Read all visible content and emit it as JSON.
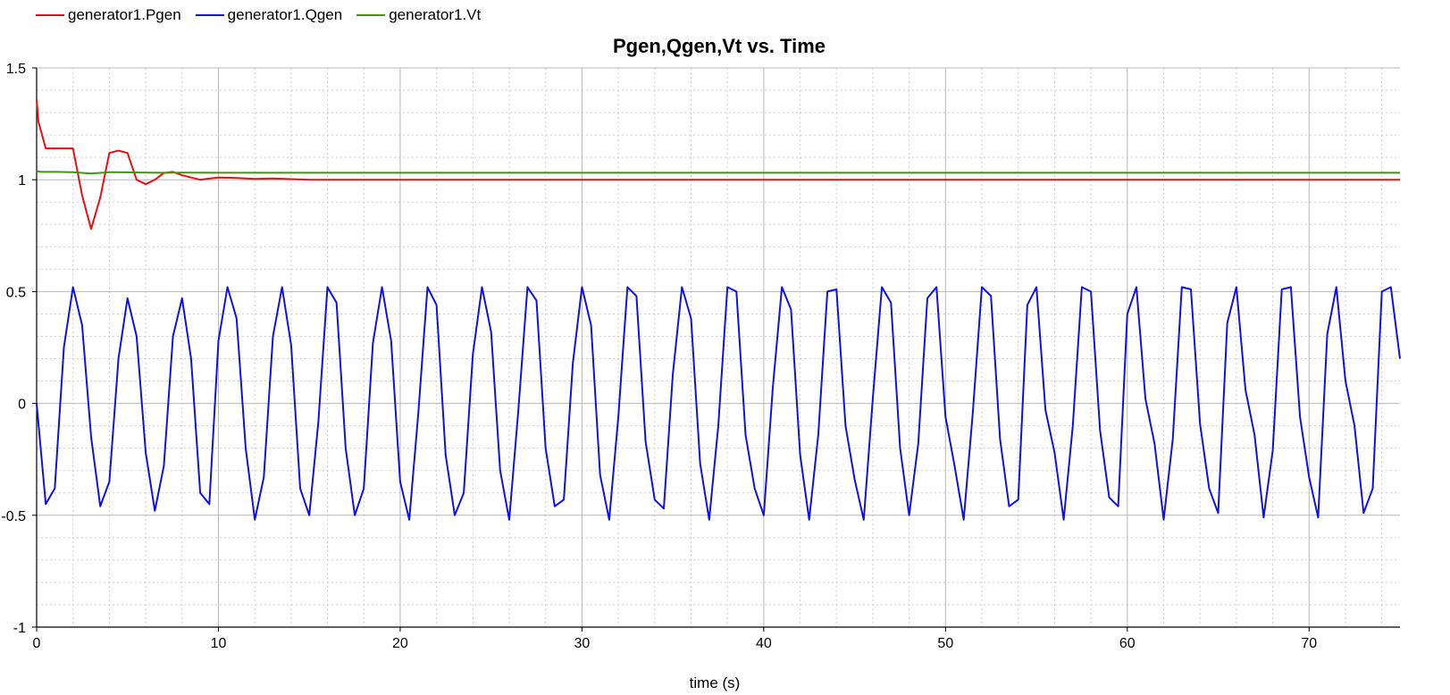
{
  "colors": {
    "pgen": "#e81010",
    "qgen": "#1010e8",
    "vt": "#3a9a0a",
    "major_grid": "#b8b8b8",
    "minor_grid": "#cfcfcf"
  },
  "chart_data": {
    "type": "line",
    "title": "Pgen,Qgen,Vt vs. Time",
    "xlabel": "time (s)",
    "ylabel": "",
    "xlim": [
      0,
      75
    ],
    "ylim": [
      -1,
      1.5
    ],
    "x_ticks": [
      "0",
      "10",
      "20",
      "30",
      "40",
      "50",
      "60",
      "70"
    ],
    "y_ticks": [
      "1.5",
      "1",
      "0.5",
      "0",
      "-0.5",
      "-1"
    ],
    "grid": true,
    "legend_position": "top-left",
    "series": [
      {
        "name": "generator1.Pgen",
        "color_key": "pgen",
        "x": [
          0,
          0.1,
          0.5,
          1,
          1.5,
          2,
          2.5,
          3,
          3.5,
          4,
          4.5,
          5,
          5.5,
          6,
          6.5,
          7,
          7.5,
          8,
          8.5,
          9,
          9.5,
          10,
          11,
          12,
          13,
          15,
          20,
          30,
          40,
          50,
          60,
          70,
          75
        ],
        "y": [
          1.36,
          1.26,
          1.14,
          1.14,
          1.14,
          1.14,
          0.93,
          0.78,
          0.92,
          1.12,
          1.13,
          1.12,
          1.0,
          0.98,
          1.0,
          1.03,
          1.035,
          1.02,
          1.01,
          1.0,
          1.005,
          1.01,
          1.008,
          1.004,
          1.006,
          1.0,
          1.0,
          1.0,
          1.0,
          1.0,
          1.0,
          1.0,
          1.0
        ]
      },
      {
        "name": "generator1.Qgen",
        "color_key": "qgen",
        "x": [
          0,
          0.5,
          1.0,
          1.5,
          2.0,
          2.5,
          3.0,
          3.5,
          4.0,
          4.5,
          5.0,
          5.5,
          6.0,
          6.5,
          7.0,
          7.5,
          8.0,
          8.5,
          9.0,
          9.5,
          10.0,
          10.5,
          11.0,
          11.5,
          12.0,
          12.5,
          13.0,
          13.5,
          14.0,
          14.5,
          15.0,
          15.5,
          16.0,
          16.5,
          17.0,
          17.5,
          18.0,
          18.5,
          19.0,
          19.5,
          20.0,
          20.5,
          21.0,
          21.5,
          22.0,
          22.5,
          23.0,
          23.5,
          24.0,
          24.5,
          25.0,
          25.5,
          26.0,
          26.5,
          27.0,
          27.5,
          28.0,
          28.5,
          29.0,
          29.5,
          30.0,
          30.5,
          31.0,
          31.5,
          32.0,
          32.5,
          33.0,
          33.5,
          34.0,
          34.5,
          35.0,
          35.5,
          36.0,
          36.5,
          37.0,
          37.5,
          38.0,
          38.5,
          39.0,
          39.5,
          40.0,
          40.5,
          41.0,
          41.5,
          42.0,
          42.5,
          43.0,
          43.5,
          44.0,
          44.5,
          45.0,
          45.5,
          46.0,
          46.5,
          47.0,
          47.5,
          48.0,
          48.5,
          49.0,
          49.5,
          50.0,
          50.5,
          51.0,
          51.5,
          52.0,
          52.5,
          53.0,
          53.5,
          54.0,
          54.5,
          55.0,
          55.5,
          56.0,
          56.5,
          57.0,
          57.5,
          58.0,
          58.5,
          59.0,
          59.5,
          60.0,
          60.5,
          61.0,
          61.5,
          62.0,
          62.5,
          63.0,
          63.5,
          64.0,
          64.5,
          65.0,
          65.5,
          66.0,
          66.5,
          67.0,
          67.5,
          68.0,
          68.5,
          69.0,
          69.5,
          70.0,
          70.5,
          71.0,
          71.5,
          72.0,
          72.5,
          73.0,
          73.5,
          74.0,
          74.5,
          75.0
        ],
        "y": [
          0.0,
          -0.45,
          -0.38,
          0.25,
          0.52,
          0.35,
          -0.15,
          -0.46,
          -0.35,
          0.2,
          0.47,
          0.3,
          -0.22,
          -0.48,
          -0.28,
          0.3,
          0.47,
          0.2,
          -0.4,
          -0.45,
          0.28,
          0.52,
          0.38,
          -0.2,
          -0.52,
          -0.33,
          0.3,
          0.52,
          0.26,
          -0.38,
          -0.5,
          -0.08,
          0.52,
          0.45,
          -0.2,
          -0.5,
          -0.38,
          0.27,
          0.52,
          0.28,
          -0.35,
          -0.52,
          -0.04,
          0.52,
          0.44,
          -0.23,
          -0.5,
          -0.4,
          0.22,
          0.52,
          0.32,
          -0.3,
          -0.52,
          -0.03,
          0.52,
          0.46,
          -0.2,
          -0.46,
          -0.43,
          0.18,
          0.52,
          0.35,
          -0.32,
          -0.52,
          -0.06,
          0.52,
          0.48,
          -0.17,
          -0.43,
          -0.47,
          0.13,
          0.52,
          0.38,
          -0.27,
          -0.52,
          -0.1,
          0.52,
          0.5,
          -0.14,
          -0.38,
          -0.5,
          0.07,
          0.52,
          0.42,
          -0.23,
          -0.52,
          -0.14,
          0.5,
          0.51,
          -0.1,
          -0.34,
          -0.52,
          0.02,
          0.52,
          0.45,
          -0.2,
          -0.5,
          -0.18,
          0.47,
          0.52,
          -0.06,
          -0.28,
          -0.52,
          -0.04,
          0.52,
          0.48,
          -0.16,
          -0.46,
          -0.43,
          0.44,
          0.52,
          -0.03,
          -0.22,
          -0.52,
          -0.1,
          0.52,
          0.5,
          -0.12,
          -0.42,
          -0.46,
          0.4,
          0.52,
          0.02,
          -0.18,
          -0.52,
          -0.16,
          0.52,
          0.51,
          -0.09,
          -0.38,
          -0.49,
          0.36,
          0.52,
          0.06,
          -0.14,
          -0.51,
          -0.21,
          0.51,
          0.52,
          -0.06,
          -0.33,
          -0.51,
          0.31,
          0.52,
          0.1,
          -0.1,
          -0.49,
          -0.38,
          0.5,
          0.52,
          0.2
        ]
      },
      {
        "name": "generator1.Vt",
        "color_key": "vt",
        "x": [
          0,
          0.2,
          1,
          2,
          3,
          4,
          5,
          6,
          7,
          8,
          10,
          20,
          30,
          40,
          50,
          60,
          70,
          75
        ],
        "y": [
          1.04,
          1.035,
          1.035,
          1.034,
          1.028,
          1.034,
          1.033,
          1.032,
          1.031,
          1.032,
          1.031,
          1.031,
          1.031,
          1.031,
          1.031,
          1.031,
          1.031,
          1.031
        ]
      }
    ]
  }
}
